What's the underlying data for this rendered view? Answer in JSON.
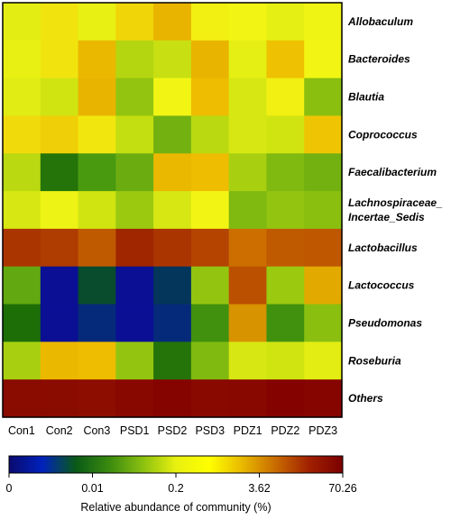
{
  "chart_data": {
    "type": "heatmap",
    "columns": [
      "Con1",
      "Con2",
      "Con3",
      "PSD1",
      "PSD2",
      "PSD3",
      "PDZ1",
      "PDZ2",
      "PDZ3"
    ],
    "rows": [
      {
        "label": "Allobaculum",
        "values": [
          2.4,
          3.6,
          2.6,
          4.2,
          6.5,
          3.2,
          3.0,
          2.5,
          2.9
        ]
      },
      {
        "label": "Bacteroides",
        "values": [
          2.6,
          3.6,
          6.0,
          1.2,
          1.6,
          6.5,
          2.5,
          5.2,
          3.0
        ]
      },
      {
        "label": "Blautia",
        "values": [
          2.3,
          1.8,
          6.5,
          0.7,
          3.0,
          5.5,
          2.0,
          3.2,
          0.6
        ]
      },
      {
        "label": "Coprococcus",
        "values": [
          4.0,
          4.5,
          3.5,
          1.5,
          0.4,
          1.3,
          2.0,
          1.8,
          5.0
        ]
      },
      {
        "label": "Faecalibacterium",
        "values": [
          1.3,
          0.06,
          0.2,
          0.35,
          6.0,
          5.5,
          1.0,
          0.5,
          0.4
        ]
      },
      {
        "label": "Lachnospiraceae_ Incertae_Sedis",
        "values": [
          2.0,
          2.8,
          1.8,
          0.8,
          2.0,
          3.0,
          0.5,
          0.7,
          0.6
        ]
      },
      {
        "label": "Lactobacillus",
        "values": [
          38,
          35,
          25,
          45,
          38,
          32,
          20,
          25,
          26
        ]
      },
      {
        "label": "Lactococcus",
        "values": [
          0.3,
          0.0008,
          0.007,
          0.0008,
          0.004,
          0.7,
          28,
          0.8,
          8.0
        ]
      },
      {
        "label": "Pseudomonas",
        "values": [
          0.05,
          0.0008,
          0.003,
          0.0008,
          0.003,
          0.15,
          12,
          0.15,
          0.6
        ]
      },
      {
        "label": "Roseburia",
        "values": [
          1.0,
          6.0,
          5.5,
          0.7,
          0.06,
          0.5,
          2.0,
          1.8,
          2.4
        ]
      },
      {
        "label": "Others",
        "values": [
          62,
          62,
          60,
          64,
          67,
          63,
          64,
          68,
          66
        ]
      }
    ],
    "colorbar": {
      "title": "Relative abundance of community (%)",
      "ticks": [
        "0",
        "0.01",
        "0.2",
        "3.62",
        "70.26"
      ],
      "colors": [
        "#0a0a6e",
        "#0022bb",
        "#0a5a18",
        "#3a8a10",
        "#8ac010",
        "#e8f010",
        "#ffff00",
        "#e8b800",
        "#c86a00",
        "#a02000",
        "#7a0000"
      ]
    },
    "colors": {
      "ramp_values": [
        0.0005,
        0.002,
        0.004,
        0.01,
        0.05,
        0.2,
        1.0,
        3.0,
        5.5,
        10.0,
        20.0,
        40.0,
        70.26
      ],
      "ramp_colors": [
        "#0a0a8a",
        "#0a1aa8",
        "#04355a",
        "#0a5a10",
        "#1e6e08",
        "#4a9a10",
        "#a8d010",
        "#f2f514",
        "#eebc00",
        "#dba000",
        "#cc6e00",
        "#a83000",
        "#820000"
      ]
    }
  }
}
